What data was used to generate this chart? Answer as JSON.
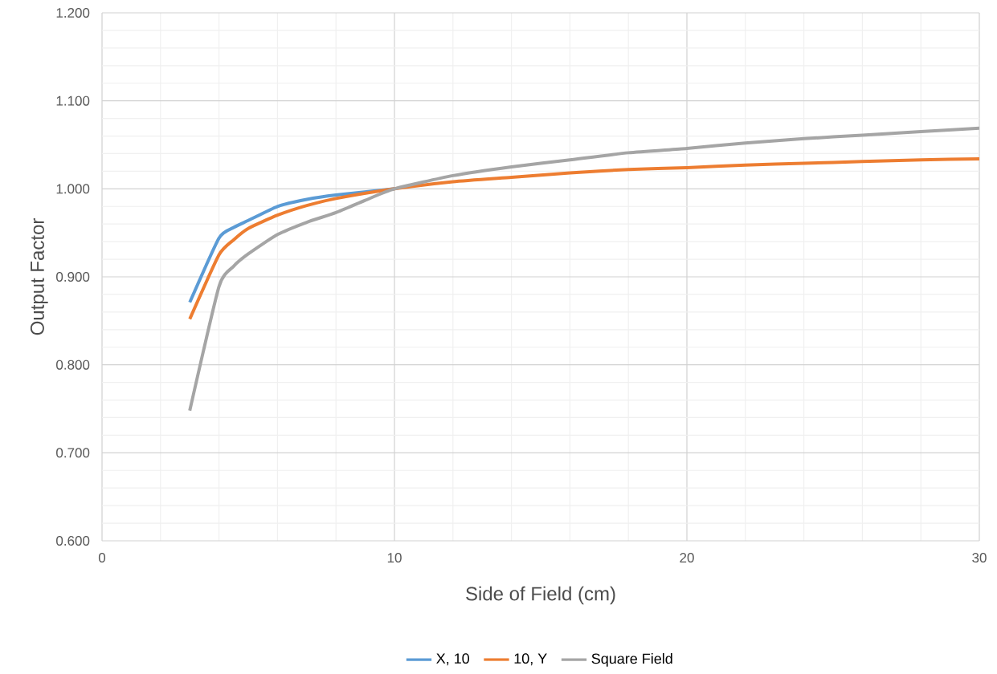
{
  "chart_data": {
    "type": "line",
    "xlabel": "Side of Field (cm)",
    "ylabel": "Output Factor",
    "xlim": [
      0,
      30
    ],
    "ylim": [
      0.6,
      1.2
    ],
    "xticks": [
      0,
      10,
      20,
      30
    ],
    "yticks": [
      {
        "value": 0.6,
        "label": "0.600"
      },
      {
        "value": 0.7,
        "label": "0.700"
      },
      {
        "value": 0.8,
        "label": "0.800"
      },
      {
        "value": 0.9,
        "label": "0.900"
      },
      {
        "value": 1.0,
        "label": "1.000"
      },
      {
        "value": 1.1,
        "label": "1.100"
      },
      {
        "value": 1.2,
        "label": "1.200"
      }
    ],
    "grid": true,
    "legend": "bottom",
    "series": [
      {
        "name": "X, 10",
        "color": "#5b9bd5",
        "x": [
          3,
          4,
          4.5,
          5,
          6,
          7,
          8,
          10
        ],
        "values": [
          0.871,
          0.944,
          0.956,
          0.964,
          0.98,
          0.988,
          0.993,
          1.0
        ]
      },
      {
        "name": "10, Y",
        "color": "#ed7d31",
        "x": [
          3,
          4,
          4.5,
          5,
          6,
          7,
          8,
          10,
          12,
          14,
          16,
          18,
          20,
          22,
          24,
          26,
          28,
          30
        ],
        "values": [
          0.852,
          0.925,
          0.942,
          0.955,
          0.97,
          0.981,
          0.989,
          1.0,
          1.008,
          1.013,
          1.018,
          1.022,
          1.024,
          1.027,
          1.029,
          1.031,
          1.033,
          1.034
        ]
      },
      {
        "name": "Square Field",
        "color": "#a5a5a5",
        "x": [
          3,
          4,
          4.5,
          5,
          6,
          7,
          8,
          9,
          10,
          12,
          14,
          16,
          18,
          20,
          22,
          24,
          26,
          28,
          30
        ],
        "values": [
          0.748,
          0.889,
          0.912,
          0.926,
          0.948,
          0.962,
          0.973,
          0.987,
          1.0,
          1.015,
          1.025,
          1.033,
          1.041,
          1.046,
          1.052,
          1.057,
          1.061,
          1.065,
          1.069
        ]
      }
    ]
  }
}
